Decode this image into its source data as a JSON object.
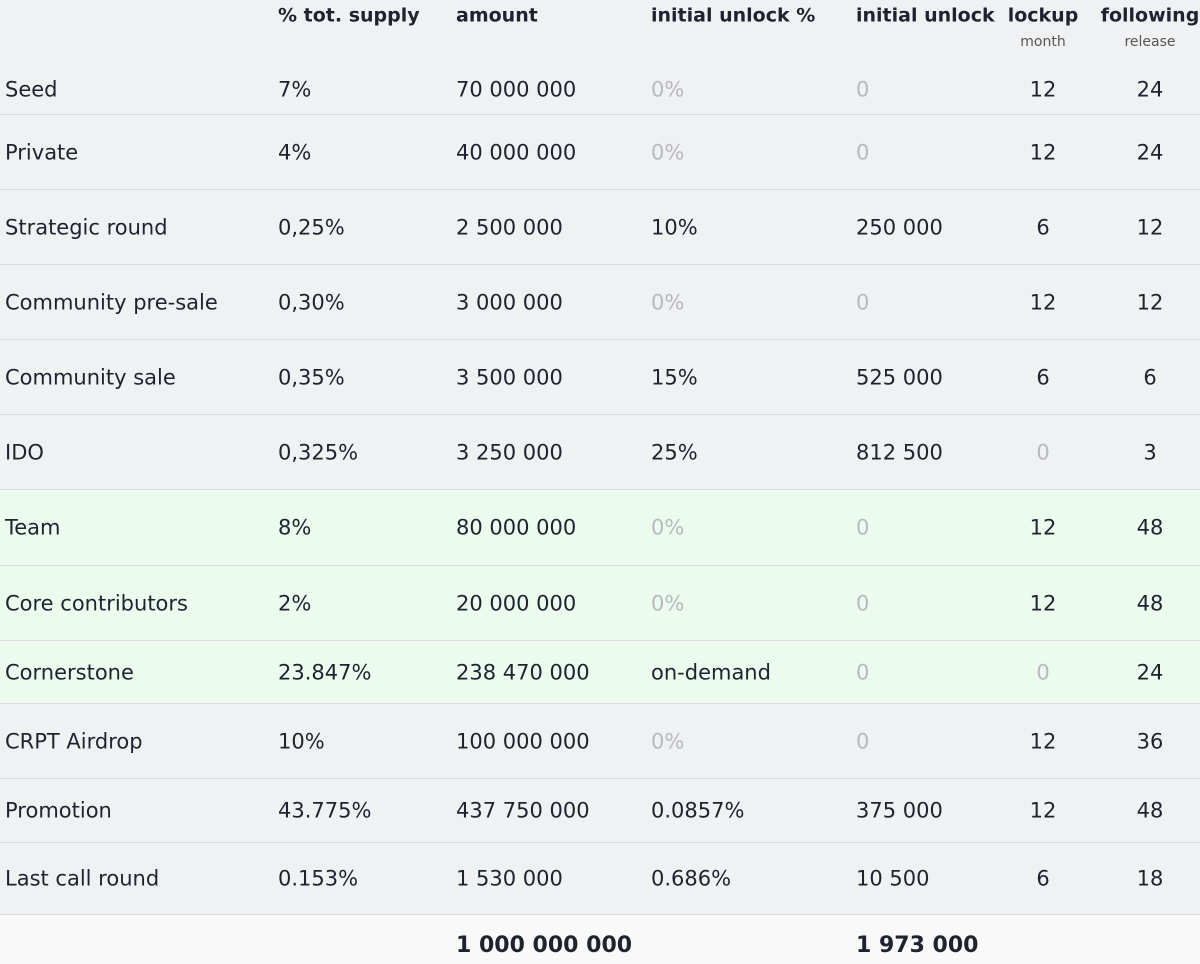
{
  "header": {
    "columns": [
      {
        "label": "% tot. supply"
      },
      {
        "label": "amount"
      },
      {
        "label": "initial unlock %"
      },
      {
        "label": "initial unlock"
      },
      {
        "label": "lockup",
        "sub": "month"
      },
      {
        "label": "following",
        "sub": "release"
      }
    ]
  },
  "table": {
    "rows": [
      {
        "cells": [
          "Seed",
          "7%",
          "70 000 000",
          "0%",
          "0",
          "12",
          "24"
        ]
      },
      {
        "cells": [
          "Private",
          "4%",
          "40 000 000",
          "0%",
          "0",
          "12",
          "24"
        ]
      },
      {
        "cells": [
          "Strategic round",
          "0,25%",
          "2 500 000",
          "10%",
          "250 000",
          "6",
          "12"
        ]
      },
      {
        "cells": [
          "Community pre-sale",
          "0,30%",
          "3 000 000",
          "0%",
          "0",
          "12",
          "12"
        ]
      },
      {
        "cells": [
          "Community sale",
          "0,35%",
          "3 500 000",
          "15%",
          "525 000",
          "6",
          "6"
        ]
      },
      {
        "cells": [
          "IDO",
          "0,325%",
          "3 250 000",
          "25%",
          "812 500",
          "0",
          "3"
        ]
      },
      {
        "cells": [
          "Team",
          "8%",
          "80 000 000",
          "0%",
          "0",
          "12",
          "48"
        ],
        "background": "#ebfbee"
      },
      {
        "cells": [
          "Core contributors",
          "2%",
          "20 000 000",
          "0%",
          "0",
          "12",
          "48"
        ],
        "background": "#ebfbee"
      },
      {
        "cells": [
          "Cornerstone",
          "23.847%",
          "238 470 000",
          "on-demand",
          "0",
          "0",
          "24"
        ],
        "background": "#ebfbee"
      },
      {
        "cells": [
          "CRPT Airdrop",
          "10%",
          "100 000 000",
          "0%",
          "0",
          "12",
          "36"
        ]
      },
      {
        "cells": [
          "Promotion",
          "43.775%",
          "437 750 000",
          "0.0857%",
          "375 000",
          "12",
          "48"
        ]
      },
      {
        "cells": [
          "Last call round",
          "0.153%",
          "1 530 000",
          "0.686%",
          "10 500",
          "6",
          "18"
        ]
      }
    ],
    "total": {
      "amount": "1 000 000 000",
      "initial_unlock": "1 973 000"
    }
  }
}
